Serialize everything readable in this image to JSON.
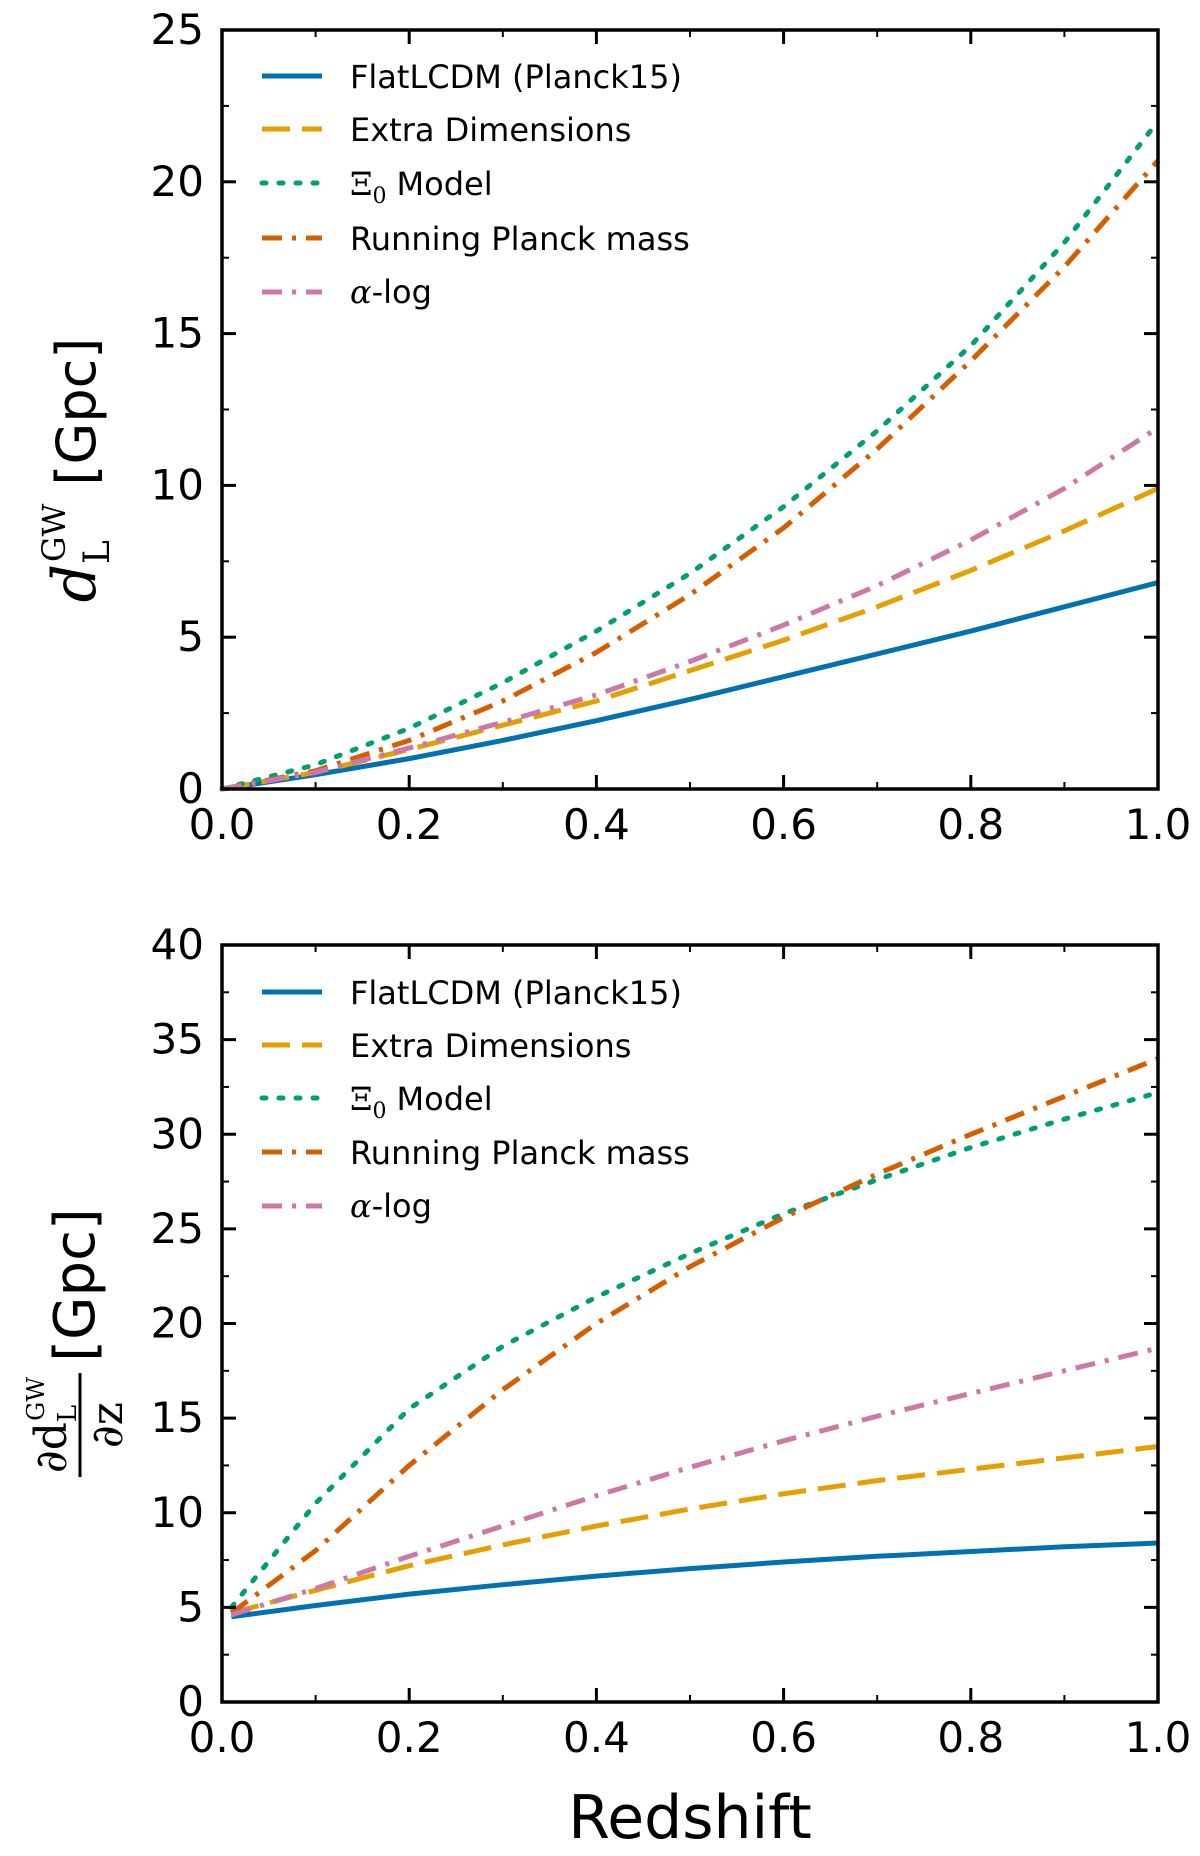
{
  "figure": {
    "xlabel": "Redshift"
  },
  "colors": {
    "flatlcdm": "#0072b2",
    "extra_dimensions": "#e69f00",
    "xi0": "#009e73",
    "running_planck": "#d55e00",
    "alpha_log": "#cc79a7"
  },
  "chart_data": [
    {
      "type": "line",
      "title": "",
      "xlabel": "",
      "ylabel": "d_L^GW [Gpc]",
      "ylabel_parts": {
        "base": "d",
        "sub": "L",
        "sup": "GW",
        "unit": "[Gpc]"
      },
      "xlim": [
        0.0,
        1.0
      ],
      "ylim": [
        0,
        25
      ],
      "xticks": [
        "0.0",
        "0.2",
        "0.4",
        "0.6",
        "0.8",
        "1.0"
      ],
      "yticks": [
        "0",
        "5",
        "10",
        "15",
        "20",
        "25"
      ],
      "legend_position": "top-left",
      "x": [
        0.0,
        0.1,
        0.2,
        0.3,
        0.4,
        0.5,
        0.6,
        0.7,
        0.8,
        0.9,
        1.0
      ],
      "series": [
        {
          "name": "FlatLCDM (Planck15)",
          "key": "flatlcdm",
          "style": "solid",
          "values": [
            0,
            0.47,
            1.0,
            1.6,
            2.25,
            2.95,
            3.7,
            4.45,
            5.2,
            6.0,
            6.8
          ]
        },
        {
          "name": "Extra Dimensions",
          "key": "extra_dimensions",
          "style": "dashed",
          "values": [
            0,
            0.55,
            1.3,
            2.1,
            2.9,
            3.9,
            4.9,
            6.0,
            7.2,
            8.5,
            9.9
          ]
        },
        {
          "name": "Model",
          "name_math": "Ξ",
          "name_sub": "0",
          "key": "xi0",
          "style": "dotted",
          "values": [
            0,
            0.8,
            2.0,
            3.5,
            5.2,
            7.1,
            9.3,
            11.8,
            14.6,
            18.0,
            22.0
          ]
        },
        {
          "name": "Running Planck mass",
          "key": "running_planck",
          "style": "dashdot",
          "values": [
            0,
            0.6,
            1.6,
            2.9,
            4.5,
            6.4,
            8.6,
            11.2,
            14.1,
            17.2,
            20.7
          ]
        },
        {
          "name": "-log",
          "name_math": "α",
          "key": "alpha_log",
          "style": "dashdot",
          "values": [
            0,
            0.55,
            1.35,
            2.2,
            3.1,
            4.2,
            5.4,
            6.7,
            8.2,
            9.9,
            11.9
          ]
        }
      ]
    },
    {
      "type": "line",
      "title": "",
      "xlabel": "Redshift",
      "ylabel": "∂d_L^GW/∂z [Gpc]",
      "ylabel_parts": {
        "num": "∂d",
        "sub": "L",
        "sup": "GW",
        "den": "∂z",
        "unit": "[Gpc]"
      },
      "xlim": [
        0.0,
        1.0
      ],
      "ylim": [
        0,
        40
      ],
      "xticks": [
        "0.0",
        "0.2",
        "0.4",
        "0.6",
        "0.8",
        "1.0"
      ],
      "yticks": [
        "0",
        "5",
        "10",
        "15",
        "20",
        "25",
        "30",
        "35",
        "40"
      ],
      "legend_position": "top-left",
      "x": [
        0.01,
        0.1,
        0.2,
        0.3,
        0.4,
        0.5,
        0.6,
        0.7,
        0.8,
        0.9,
        1.0
      ],
      "series": [
        {
          "name": "FlatLCDM (Planck15)",
          "key": "flatlcdm",
          "style": "solid",
          "values": [
            4.5,
            5.1,
            5.7,
            6.2,
            6.65,
            7.05,
            7.4,
            7.7,
            7.95,
            8.2,
            8.4
          ]
        },
        {
          "name": "Extra Dimensions",
          "key": "extra_dimensions",
          "style": "dashed",
          "values": [
            4.7,
            5.9,
            7.2,
            8.3,
            9.3,
            10.2,
            11.0,
            11.7,
            12.3,
            12.9,
            13.5
          ]
        },
        {
          "name": "Model",
          "name_math": "Ξ",
          "name_sub": "0",
          "key": "xi0",
          "style": "dotted",
          "values": [
            5.0,
            10.5,
            15.5,
            18.8,
            21.4,
            23.7,
            25.8,
            27.6,
            29.3,
            30.8,
            32.2
          ]
        },
        {
          "name": "Running Planck mass",
          "key": "running_planck",
          "style": "dashdot",
          "values": [
            4.7,
            8.0,
            12.5,
            16.5,
            20.0,
            23.0,
            25.6,
            27.9,
            30.0,
            32.0,
            34.0
          ]
        },
        {
          "name": "-log",
          "name_math": "α",
          "key": "alpha_log",
          "style": "dashdot",
          "values": [
            4.6,
            6.0,
            7.7,
            9.3,
            10.9,
            12.4,
            13.8,
            15.1,
            16.3,
            17.5,
            18.7
          ]
        }
      ]
    }
  ]
}
